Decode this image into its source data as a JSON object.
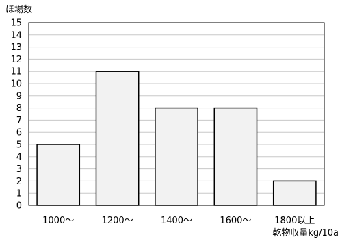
{
  "chart_data": {
    "type": "bar",
    "ylabel": "ほ場数",
    "xlabel": "乾物収量kg/10a",
    "categories": [
      "1000〜",
      "1200〜",
      "1400〜",
      "1600〜",
      "1800以上"
    ],
    "values": [
      5,
      11,
      8,
      8,
      2
    ],
    "ylim": [
      0,
      15
    ],
    "ytick_step": 1,
    "grid": true,
    "bar_fill": "#f2f2f2",
    "bar_stroke": "#000000",
    "grid_color": "#c8c8c8"
  }
}
